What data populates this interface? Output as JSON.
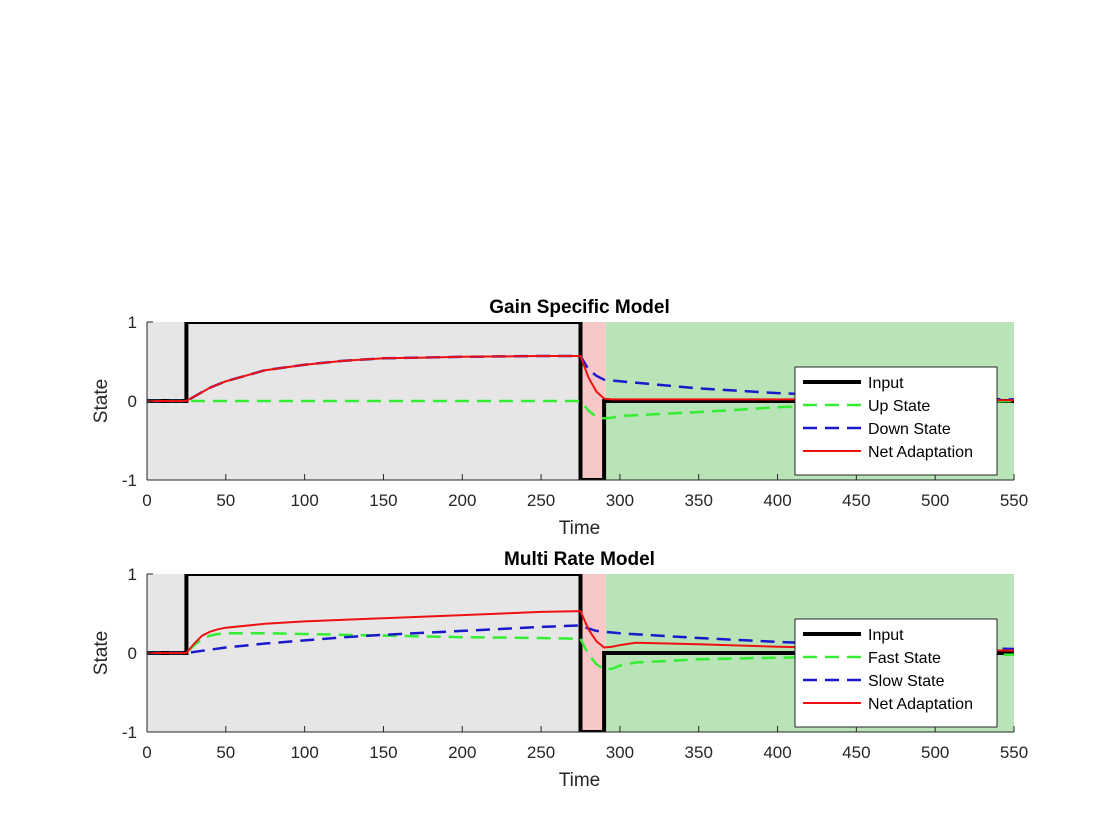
{
  "chart_data": [
    {
      "type": "line",
      "title": "Gain Specific Model",
      "xlabel": "Time",
      "ylabel": "State",
      "xlim": [
        0,
        550
      ],
      "ylim": [
        -1,
        1
      ],
      "xticks": [
        0,
        50,
        100,
        150,
        200,
        250,
        300,
        350,
        400,
        450,
        500,
        550
      ],
      "yticks": [
        -1,
        0,
        1
      ],
      "legend_position": "lower-right",
      "phases": [
        {
          "x0": 0,
          "x1": 275,
          "color": "#e6e6e6"
        },
        {
          "x0": 275,
          "x1": 291,
          "color": "#f8c8c8"
        },
        {
          "x0": 291,
          "x1": 550,
          "color": "#b8e4b8"
        }
      ],
      "series": [
        {
          "name": "Input",
          "color": "#000000",
          "dash": "solid",
          "width": 4,
          "x": [
            0,
            25,
            25,
            275,
            275,
            290,
            290,
            550
          ],
          "y": [
            0,
            0,
            1,
            1,
            -1,
            -1,
            0,
            0
          ]
        },
        {
          "name": "Up State",
          "color": "#33ee33",
          "dash": "dashed",
          "width": 2.5,
          "x": [
            0,
            25,
            50,
            100,
            150,
            200,
            250,
            275,
            280,
            285,
            290,
            295,
            300,
            350,
            400,
            450,
            500,
            550
          ],
          "y": [
            0,
            0,
            0,
            0,
            0,
            0,
            0,
            0,
            -0.12,
            -0.2,
            -0.22,
            -0.21,
            -0.19,
            -0.14,
            -0.08,
            -0.04,
            -0.02,
            0
          ]
        },
        {
          "name": "Down State",
          "color": "#1a1acc",
          "dash": "dashed",
          "width": 2.5,
          "x": [
            0,
            25,
            40,
            50,
            75,
            100,
            125,
            150,
            175,
            200,
            225,
            250,
            275,
            280,
            285,
            290,
            295,
            300,
            350,
            400,
            450,
            500,
            550
          ],
          "y": [
            0,
            0,
            0.17,
            0.25,
            0.39,
            0.46,
            0.51,
            0.54,
            0.55,
            0.56,
            0.565,
            0.57,
            0.57,
            0.4,
            0.32,
            0.27,
            0.26,
            0.25,
            0.16,
            0.1,
            0.06,
            0.03,
            0.02
          ]
        },
        {
          "name": "Net Adaptation",
          "color": "#ee1111",
          "dash": "solid",
          "width": 2,
          "x": [
            0,
            25,
            40,
            50,
            75,
            100,
            125,
            150,
            175,
            200,
            225,
            250,
            275,
            280,
            285,
            290,
            295,
            300,
            350,
            400,
            450,
            500,
            550
          ],
          "y": [
            0,
            0,
            0.17,
            0.25,
            0.39,
            0.46,
            0.51,
            0.54,
            0.55,
            0.56,
            0.565,
            0.57,
            0.57,
            0.3,
            0.12,
            0.03,
            0.02,
            0.02,
            0.02,
            0.02,
            0.02,
            0.01,
            0.01
          ]
        }
      ]
    },
    {
      "type": "line",
      "title": "Multi Rate Model",
      "xlabel": "Time",
      "ylabel": "State",
      "xlim": [
        0,
        550
      ],
      "ylim": [
        -1,
        1
      ],
      "xticks": [
        0,
        50,
        100,
        150,
        200,
        250,
        300,
        350,
        400,
        450,
        500,
        550
      ],
      "yticks": [
        -1,
        0,
        1
      ],
      "legend_position": "lower-right",
      "phases": [
        {
          "x0": 0,
          "x1": 275,
          "color": "#e6e6e6"
        },
        {
          "x0": 275,
          "x1": 291,
          "color": "#f8c8c8"
        },
        {
          "x0": 291,
          "x1": 550,
          "color": "#b8e4b8"
        }
      ],
      "series": [
        {
          "name": "Input",
          "color": "#000000",
          "dash": "solid",
          "width": 4,
          "x": [
            0,
            25,
            25,
            275,
            275,
            290,
            290,
            550
          ],
          "y": [
            0,
            0,
            1,
            1,
            -1,
            -1,
            0,
            0
          ]
        },
        {
          "name": "Fast State",
          "color": "#33ee33",
          "dash": "dashed",
          "width": 2.5,
          "x": [
            0,
            25,
            30,
            35,
            40,
            45,
            50,
            75,
            100,
            150,
            200,
            250,
            275,
            280,
            285,
            290,
            295,
            300,
            310,
            350,
            400,
            450,
            500,
            550
          ],
          "y": [
            0,
            0,
            0.1,
            0.18,
            0.22,
            0.24,
            0.25,
            0.25,
            0.24,
            0.22,
            0.2,
            0.19,
            0.18,
            -0.02,
            -0.14,
            -0.21,
            -0.2,
            -0.16,
            -0.12,
            -0.08,
            -0.06,
            -0.04,
            -0.03,
            -0.02
          ]
        },
        {
          "name": "Slow State",
          "color": "#1a1acc",
          "dash": "dashed",
          "width": 2.5,
          "x": [
            0,
            25,
            50,
            75,
            100,
            125,
            150,
            200,
            250,
            275,
            280,
            285,
            290,
            300,
            350,
            400,
            450,
            500,
            550
          ],
          "y": [
            0,
            0,
            0.07,
            0.12,
            0.16,
            0.2,
            0.23,
            0.28,
            0.33,
            0.35,
            0.31,
            0.28,
            0.27,
            0.25,
            0.19,
            0.14,
            0.1,
            0.07,
            0.05
          ]
        },
        {
          "name": "Net Adaptation",
          "color": "#ee1111",
          "dash": "solid",
          "width": 2,
          "x": [
            0,
            25,
            30,
            35,
            40,
            45,
            50,
            75,
            100,
            150,
            200,
            250,
            275,
            280,
            285,
            290,
            295,
            300,
            310,
            350,
            400,
            450,
            500,
            550
          ],
          "y": [
            0,
            0,
            0.12,
            0.22,
            0.27,
            0.3,
            0.32,
            0.37,
            0.4,
            0.44,
            0.48,
            0.52,
            0.53,
            0.3,
            0.15,
            0.07,
            0.08,
            0.1,
            0.13,
            0.11,
            0.08,
            0.06,
            0.04,
            0.03
          ]
        }
      ]
    }
  ]
}
